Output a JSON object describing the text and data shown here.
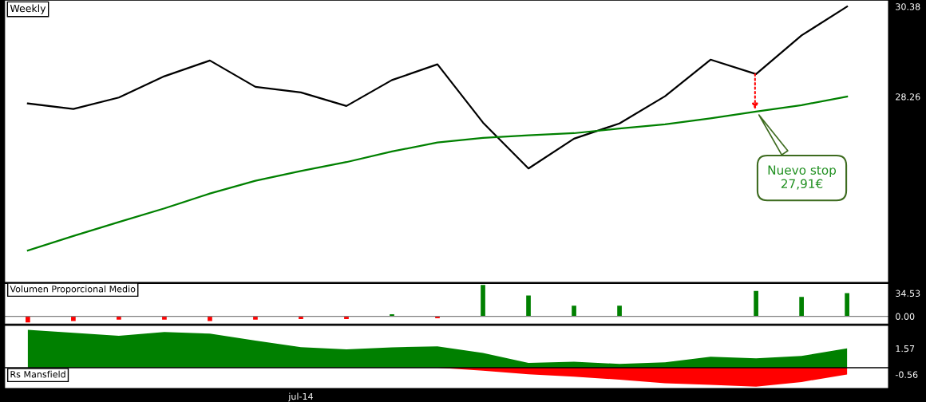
{
  "chart_data": [
    {
      "type": "line",
      "title": "Weekly",
      "categories": [
        null,
        null,
        null,
        null,
        null,
        null,
        null,
        null,
        null,
        null,
        null,
        null,
        null,
        null,
        null,
        null,
        null,
        null,
        null
      ],
      "series": [
        {
          "color": "#000000",
          "values": [
            28.1,
            27.97,
            28.24,
            28.74,
            29.11,
            28.49,
            28.36,
            28.04,
            28.65,
            29.02,
            27.65,
            26.57,
            27.27,
            27.63,
            28.27,
            29.13,
            28.79,
            29.7,
            30.38
          ]
        },
        {
          "color": "#008000",
          "values": [
            24.64,
            24.98,
            25.31,
            25.63,
            25.98,
            26.28,
            26.51,
            26.72,
            26.97,
            27.18,
            27.29,
            27.35,
            27.4,
            27.51,
            27.61,
            27.75,
            27.91,
            28.06,
            28.26
          ]
        }
      ],
      "ylim": [
        23.89,
        30.53
      ],
      "yticks": [
        30.38,
        28.26
      ],
      "tick_labels": "y",
      "grid": false,
      "legend": false,
      "annotations": [
        "Nuevo stop\n27,91€"
      ]
    },
    {
      "type": "bar",
      "title": "Volumen Proporcional Medio",
      "categories": [
        null,
        null,
        null,
        null,
        null,
        null,
        null,
        null,
        null,
        null,
        null,
        null,
        null,
        null,
        null,
        null,
        null,
        null,
        null
      ],
      "values": [
        -9,
        -7,
        -5,
        -5,
        -7,
        -5,
        -4,
        -4,
        3,
        -3,
        47,
        31,
        16,
        16,
        0,
        0,
        38,
        29,
        34.53
      ],
      "colors": [
        "#ff0000",
        "#ff0000",
        "#ff0000",
        "#ff0000",
        "#ff0000",
        "#ff0000",
        "#ff0000",
        "#ff0000",
        "#008000",
        "#ff0000",
        "#008000",
        "#008000",
        "#008000",
        "#008000",
        "#008000",
        "#008000",
        "#008000",
        "#008000",
        "#008000"
      ],
      "ylim": [
        -11.5,
        49.2
      ],
      "yticks": [
        34.53,
        {
          "value": 0,
          "label": "0.00"
        }
      ],
      "tick_labels": "y",
      "grid": false,
      "legend": false,
      "ref_lines": [
        {
          "axis": "y",
          "value": 0,
          "color": "#808080"
        }
      ]
    },
    {
      "type": "area",
      "title": "Rs Mansfield",
      "categories": [
        null,
        null,
        null,
        null,
        null,
        null,
        "jul-14",
        null,
        null,
        null,
        null,
        null,
        null,
        null,
        null,
        null,
        null,
        null,
        null
      ],
      "series": [
        {
          "color": "#008000",
          "values": [
            3.09,
            2.85,
            2.61,
            2.92,
            2.78,
            2.22,
            1.68,
            1.5,
            1.66,
            1.74,
            1.2,
            0.38,
            0.48,
            0.31,
            0.43,
            0.89,
            0.76,
            0.96,
            1.57
          ]
        },
        {
          "color": "#ff0000",
          "values": [
            null,
            null,
            null,
            null,
            null,
            null,
            null,
            null,
            null,
            0,
            -0.25,
            -0.54,
            -0.73,
            -0.98,
            -1.27,
            -1.41,
            -1.55,
            -1.17,
            -0.56
          ]
        }
      ],
      "ylim": [
        -1.7,
        3.46
      ],
      "yticks": [
        1.57,
        -0.56
      ],
      "grid": false,
      "legend": false
    }
  ]
}
